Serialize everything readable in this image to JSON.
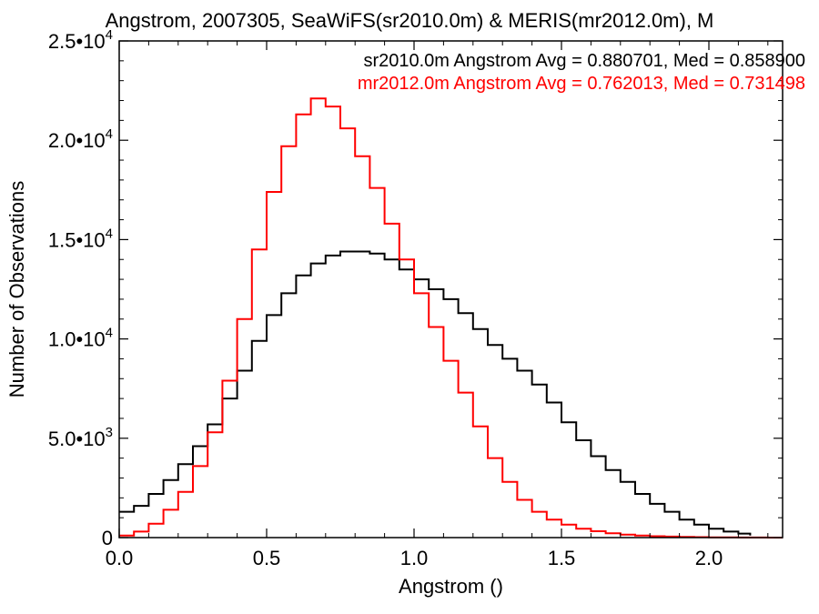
{
  "chart_data": {
    "type": "line",
    "title": "Angstrom, 2007305, SeaWiFS(sr2010.0m) & MERIS(mr2012.0m), M",
    "xlabel": "Angstrom ()",
    "ylabel": "Number of Observations",
    "xlim": [
      0.0,
      2.25
    ],
    "ylim": [
      0,
      25000
    ],
    "grid": false,
    "x_ticks": [
      {
        "value": 0.0,
        "label": "0.0"
      },
      {
        "value": 0.5,
        "label": "0.5"
      },
      {
        "value": 1.0,
        "label": "1.0"
      },
      {
        "value": 1.5,
        "label": "1.5"
      },
      {
        "value": 2.0,
        "label": "2.0"
      }
    ],
    "y_ticks": [
      {
        "value": 0,
        "mantissa": "0",
        "exponent": ""
      },
      {
        "value": 5000,
        "mantissa": "5.0•10",
        "exponent": "3"
      },
      {
        "value": 10000,
        "mantissa": "1.0•10",
        "exponent": "4"
      },
      {
        "value": 15000,
        "mantissa": "1.5•10",
        "exponent": "4"
      },
      {
        "value": 20000,
        "mantissa": "2.0•10",
        "exponent": "4"
      },
      {
        "value": 25000,
        "mantissa": "2.5•10",
        "exponent": "4"
      }
    ],
    "legend_position": "top-right",
    "series": [
      {
        "name": "sr2010.0m Angstrom Avg = 0.880701, Med = 0.858900",
        "color": "#000000",
        "points": [
          [
            0.0,
            1300
          ],
          [
            0.05,
            1600
          ],
          [
            0.1,
            2200
          ],
          [
            0.15,
            2900
          ],
          [
            0.2,
            3700
          ],
          [
            0.25,
            4600
          ],
          [
            0.3,
            5700
          ],
          [
            0.35,
            7000
          ],
          [
            0.4,
            8400
          ],
          [
            0.45,
            9900
          ],
          [
            0.5,
            11200
          ],
          [
            0.55,
            12300
          ],
          [
            0.6,
            13200
          ],
          [
            0.65,
            13800
          ],
          [
            0.7,
            14200
          ],
          [
            0.75,
            14400
          ],
          [
            0.8,
            14400
          ],
          [
            0.85,
            14300
          ],
          [
            0.9,
            14000
          ],
          [
            0.95,
            13500
          ],
          [
            1.0,
            13000
          ],
          [
            1.05,
            12500
          ],
          [
            1.1,
            12000
          ],
          [
            1.15,
            11300
          ],
          [
            1.2,
            10500
          ],
          [
            1.25,
            9700
          ],
          [
            1.3,
            9000
          ],
          [
            1.35,
            8400
          ],
          [
            1.4,
            7700
          ],
          [
            1.45,
            6800
          ],
          [
            1.5,
            5800
          ],
          [
            1.55,
            4900
          ],
          [
            1.6,
            4100
          ],
          [
            1.65,
            3400
          ],
          [
            1.7,
            2800
          ],
          [
            1.75,
            2200
          ],
          [
            1.8,
            1700
          ],
          [
            1.85,
            1300
          ],
          [
            1.9,
            900
          ],
          [
            1.95,
            650
          ],
          [
            2.0,
            450
          ],
          [
            2.05,
            300
          ],
          [
            2.1,
            200
          ],
          [
            2.14,
            100
          ]
        ]
      },
      {
        "name": "mr2012.0m Angstrom Avg = 0.762013, Med = 0.731498",
        "color": "#ff0000",
        "points": [
          [
            0.0,
            100
          ],
          [
            0.05,
            300
          ],
          [
            0.1,
            700
          ],
          [
            0.15,
            1400
          ],
          [
            0.2,
            2300
          ],
          [
            0.25,
            3600
          ],
          [
            0.3,
            5300
          ],
          [
            0.35,
            7900
          ],
          [
            0.4,
            11000
          ],
          [
            0.45,
            14500
          ],
          [
            0.5,
            17400
          ],
          [
            0.55,
            19700
          ],
          [
            0.6,
            21300
          ],
          [
            0.65,
            22100
          ],
          [
            0.7,
            21700
          ],
          [
            0.75,
            20600
          ],
          [
            0.8,
            19200
          ],
          [
            0.85,
            17600
          ],
          [
            0.9,
            15800
          ],
          [
            0.95,
            14000
          ],
          [
            1.0,
            12300
          ],
          [
            1.05,
            10600
          ],
          [
            1.1,
            8900
          ],
          [
            1.15,
            7300
          ],
          [
            1.2,
            5600
          ],
          [
            1.25,
            4000
          ],
          [
            1.3,
            2800
          ],
          [
            1.35,
            1900
          ],
          [
            1.4,
            1300
          ],
          [
            1.45,
            900
          ],
          [
            1.5,
            650
          ],
          [
            1.55,
            450
          ],
          [
            1.6,
            320
          ],
          [
            1.65,
            220
          ],
          [
            1.7,
            150
          ],
          [
            1.75,
            100
          ],
          [
            1.8,
            70
          ],
          [
            1.85,
            50
          ],
          [
            1.9,
            35
          ],
          [
            1.95,
            25
          ],
          [
            2.0,
            15
          ],
          [
            2.05,
            10
          ],
          [
            2.1,
            5
          ],
          [
            2.15,
            3
          ],
          [
            2.2,
            2
          ],
          [
            2.25,
            1
          ]
        ]
      }
    ]
  }
}
